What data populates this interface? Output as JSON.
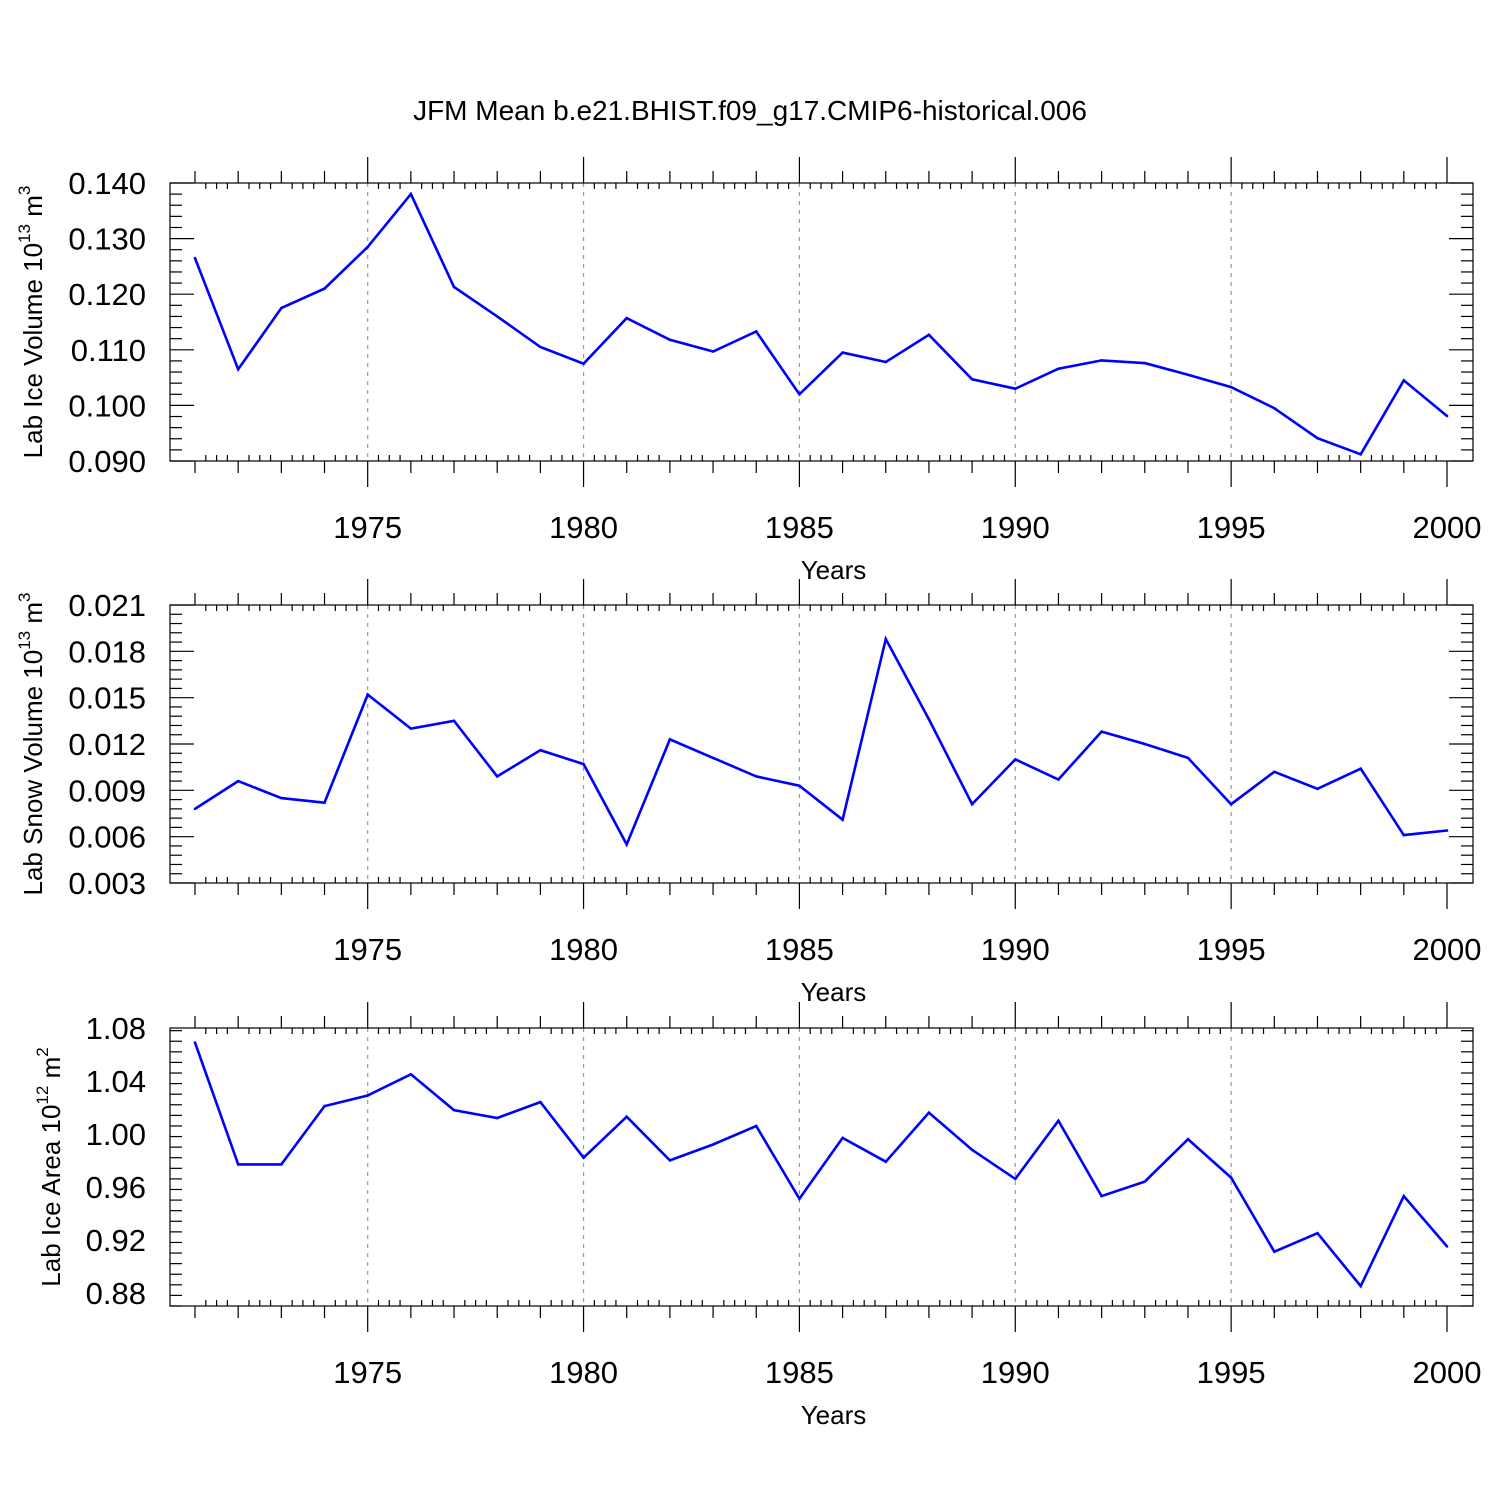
{
  "figure": {
    "title": "JFM Mean b.e21.BHIST.f09_g17.CMIP6-historical.006"
  },
  "colors": {
    "series": "#0000ff",
    "grid": "#9a9a9a",
    "axis": "#000000"
  },
  "chart_data": [
    {
      "type": "line",
      "title": "JFM Mean b.e21.BHIST.f09_g17.CMIP6-historical.006",
      "xlabel": "Years",
      "ylabel": "Lab Ice Volume 10",
      "ylabel_exp": "13",
      "ylabel_unit": " m",
      "ylabel_unit_exp": "3",
      "xlim": [
        1971,
        2000
      ],
      "ylim": [
        0.09,
        0.14
      ],
      "ytick_values": [
        0.09,
        0.1,
        0.11,
        0.12,
        0.13,
        0.14
      ],
      "ytick_labels": [
        "0.090",
        "0.100",
        "0.110",
        "0.120",
        "0.130",
        "0.140"
      ],
      "xtick_values": [
        1975,
        1980,
        1985,
        1990,
        1995,
        2000
      ],
      "xtick_labels": [
        "1975",
        "1980",
        "1985",
        "1990",
        "1995",
        "2000"
      ],
      "grid": "vertical dashed at labeled years",
      "x": [
        1971,
        1972,
        1973,
        1974,
        1975,
        1976,
        1977,
        1978,
        1979,
        1980,
        1981,
        1982,
        1983,
        1984,
        1985,
        1986,
        1987,
        1988,
        1989,
        1990,
        1991,
        1992,
        1993,
        1994,
        1995,
        1996,
        1997,
        1998,
        1999,
        2000
      ],
      "series": [
        {
          "values": [
            0.1265,
            0.1065,
            0.1175,
            0.121,
            0.1285,
            0.138,
            0.1213,
            0.116,
            0.1105,
            0.1075,
            0.1157,
            0.1118,
            0.1097,
            0.1133,
            0.102,
            0.1095,
            0.1078,
            0.1127,
            0.1047,
            0.103,
            0.1066,
            0.1081,
            0.1076,
            0.1055,
            0.1033,
            0.0995,
            0.0941,
            0.0912,
            0.1045,
            0.0981
          ]
        }
      ]
    },
    {
      "type": "line",
      "xlabel": "Years",
      "ylabel": "Lab Snow Volume 10",
      "ylabel_exp": "13",
      "ylabel_unit": " m",
      "ylabel_unit_exp": "3",
      "xlim": [
        1971,
        2000
      ],
      "ylim": [
        0.003,
        0.021
      ],
      "ytick_values": [
        0.003,
        0.006,
        0.009,
        0.012,
        0.015,
        0.018,
        0.021
      ],
      "ytick_labels": [
        "0.003",
        "0.006",
        "0.009",
        "0.012",
        "0.015",
        "0.018",
        "0.021"
      ],
      "xtick_values": [
        1975,
        1980,
        1985,
        1990,
        1995,
        2000
      ],
      "xtick_labels": [
        "1975",
        "1980",
        "1985",
        "1990",
        "1995",
        "2000"
      ],
      "grid": "vertical dashed at labeled years",
      "x": [
        1971,
        1972,
        1973,
        1974,
        1975,
        1976,
        1977,
        1978,
        1979,
        1980,
        1981,
        1982,
        1983,
        1984,
        1985,
        1986,
        1987,
        1988,
        1989,
        1990,
        1991,
        1992,
        1993,
        1994,
        1995,
        1996,
        1997,
        1998,
        1999,
        2000
      ],
      "series": [
        {
          "values": [
            0.0078,
            0.0096,
            0.0085,
            0.0082,
            0.0152,
            0.013,
            0.0135,
            0.0099,
            0.0116,
            0.0107,
            0.0055,
            0.0123,
            0.0111,
            0.0099,
            0.0093,
            0.0071,
            0.0188,
            0.0136,
            0.0081,
            0.011,
            0.0097,
            0.0128,
            0.012,
            0.0111,
            0.0081,
            0.0102,
            0.0091,
            0.0104,
            0.0061,
            0.0064
          ]
        }
      ]
    },
    {
      "type": "line",
      "xlabel": "Years",
      "ylabel": "Lab Ice Area 10",
      "ylabel_exp": "12",
      "ylabel_unit": " m",
      "ylabel_unit_exp": "2",
      "xlim": [
        1971,
        2000
      ],
      "ylim": [
        0.87,
        1.08
      ],
      "ytick_values": [
        0.88,
        0.92,
        0.96,
        1.0,
        1.04,
        1.08
      ],
      "ytick_labels": [
        "0.88",
        "0.92",
        "0.96",
        "1.00",
        "1.04",
        "1.08"
      ],
      "xtick_values": [
        1975,
        1980,
        1985,
        1990,
        1995,
        2000
      ],
      "xtick_labels": [
        "1975",
        "1980",
        "1985",
        "1990",
        "1995",
        "2000"
      ],
      "grid": "vertical dashed at labeled years",
      "x": [
        1971,
        1972,
        1973,
        1974,
        1975,
        1976,
        1977,
        1978,
        1979,
        1980,
        1981,
        1982,
        1983,
        1984,
        1985,
        1986,
        1987,
        1988,
        1989,
        1990,
        1991,
        1992,
        1993,
        1994,
        1995,
        1996,
        1997,
        1998,
        1999,
        2000
      ],
      "series": [
        {
          "values": [
            1.069,
            0.977,
            0.977,
            1.021,
            1.029,
            1.045,
            1.018,
            1.012,
            1.024,
            0.982,
            1.013,
            0.98,
            0.992,
            1.006,
            0.951,
            0.997,
            0.979,
            1.016,
            0.988,
            0.966,
            1.01,
            0.953,
            0.964,
            0.996,
            0.967,
            0.911,
            0.925,
            0.885,
            0.953,
            0.915
          ]
        }
      ]
    }
  ]
}
